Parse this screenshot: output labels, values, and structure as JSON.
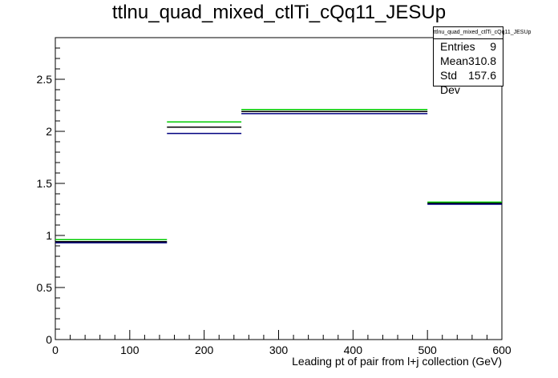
{
  "chart_data": {
    "type": "histogram",
    "title": "ttlnu_quad_mixed_ctlTi_cQq11_JESUp",
    "xlabel": "Leading pt of pair from l+j collection (GeV)",
    "ylabel": "",
    "xlim": [
      0,
      600
    ],
    "ylim": [
      0,
      2.9
    ],
    "x_ticks": [
      0,
      100,
      200,
      300,
      400,
      500,
      600
    ],
    "x_tick_labels": [
      "0",
      "100",
      "200",
      "300",
      "400",
      "500",
      "600"
    ],
    "y_ticks": [
      0,
      0.5,
      1,
      1.5,
      2,
      2.5
    ],
    "y_tick_labels": [
      "0",
      "0.5",
      "1",
      "1.5",
      "2",
      "2.5"
    ],
    "grid": false,
    "bin_edges": [
      0,
      150,
      250,
      500,
      600
    ],
    "series": [
      {
        "color": "#00cc00",
        "values": [
          0.96,
          2.09,
          2.21,
          1.32
        ]
      },
      {
        "color": "#000000",
        "values": [
          0.94,
          2.04,
          2.19,
          1.31
        ]
      },
      {
        "color": "#000080",
        "values": [
          0.93,
          1.98,
          2.17,
          1.3
        ]
      }
    ],
    "stats": {
      "title": "ttlnu_quad_mixed_ctlTi_cQq11_JESUp",
      "entries_label": "Entries",
      "entries": "9",
      "mean_label": "Mean",
      "mean": "310.8",
      "stddev_label": "Std Dev",
      "stddev": "157.6"
    }
  }
}
